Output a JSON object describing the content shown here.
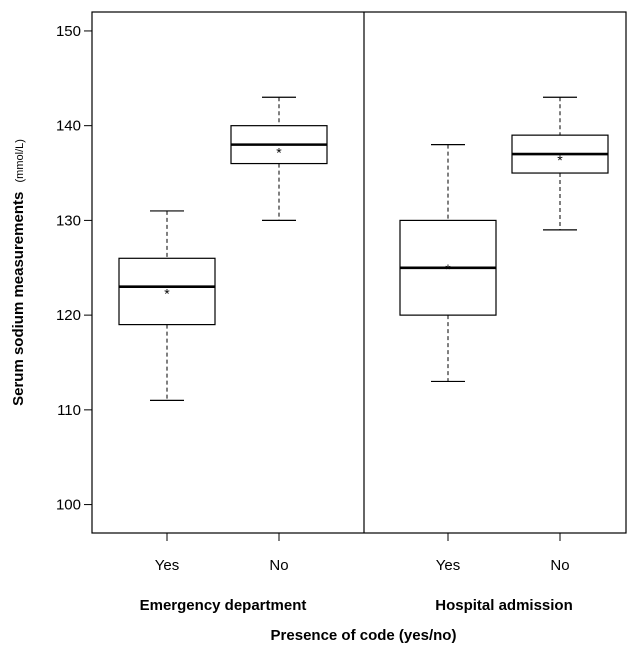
{
  "chart_data": {
    "type": "boxplot",
    "ylabel": "Serum sodium measurements",
    "ylabel_unit": "(mmol/L)",
    "xlabel": "Presence of code (yes/no)",
    "ylim": [
      97,
      152
    ],
    "yticks": [
      100,
      110,
      120,
      130,
      140,
      150
    ],
    "grid": false,
    "mean_marker": "*",
    "panels": [
      {
        "label": "Emergency department",
        "categories": [
          {
            "name": "Yes",
            "min": 111,
            "q1": 119,
            "median": 123,
            "q3": 126,
            "max": 131,
            "mean": 122.7
          },
          {
            "name": "No",
            "min": 130,
            "q1": 136,
            "median": 138,
            "q3": 140,
            "max": 143,
            "mean": 137.6
          }
        ]
      },
      {
        "label": "Hospital admission",
        "categories": [
          {
            "name": "Yes",
            "min": 113,
            "q1": 120,
            "median": 125,
            "q3": 130,
            "max": 138,
            "mean": 125.3
          },
          {
            "name": "No",
            "min": 129,
            "q1": 135,
            "median": 137,
            "q3": 139,
            "max": 143,
            "mean": 136.8
          }
        ]
      }
    ]
  }
}
